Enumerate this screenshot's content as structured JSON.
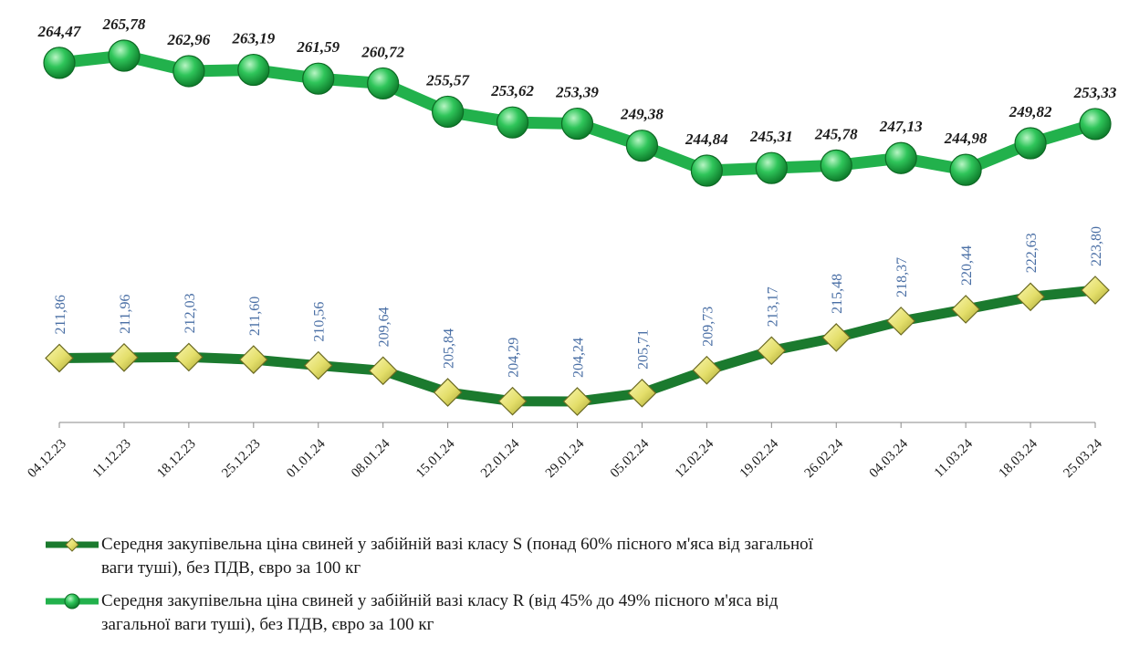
{
  "chart_data": {
    "type": "line",
    "categories": [
      "04.12.23",
      "11.12.23",
      "18.12.23",
      "25.12.23",
      "01.01.24",
      "08.01.24",
      "15.01.24",
      "22.01.24",
      "29.01.24",
      "05.02.24",
      "12.02.24",
      "19.02.24",
      "26.02.24",
      "04.03.24",
      "11.03.24",
      "18.03.24",
      "25.03.24"
    ],
    "series": [
      {
        "name": "Середня закупівельна ціна свиней у забійній вазі класу R (від 45% до 49% пісного м'яса від загальної ваги туші), без ПДВ, євро за 100 кг",
        "values": [
          264.47,
          265.78,
          262.96,
          263.19,
          261.59,
          260.72,
          255.57,
          253.62,
          253.39,
          249.38,
          244.84,
          245.31,
          245.78,
          247.13,
          244.98,
          249.82,
          253.33
        ],
        "labels": [
          "264,47",
          "265,78",
          "262,96",
          "263,19",
          "261,59",
          "260,72",
          "255,57",
          "253,62",
          "253,39",
          "249,38",
          "244,84",
          "245,31",
          "245,78",
          "247,13",
          "244,98",
          "249,82",
          "253,33"
        ],
        "color": "#22b14c",
        "marker": "circle"
      },
      {
        "name": "Середня закупівельна ціна свиней у забійній вазі класу S (понад 60% пісного м'яса від загальної ваги туші), без ПДВ, євро за 100 кг",
        "values": [
          211.86,
          211.96,
          212.03,
          211.6,
          210.56,
          209.64,
          205.84,
          204.29,
          204.24,
          205.71,
          209.73,
          213.17,
          215.48,
          218.37,
          220.44,
          222.63,
          223.8
        ],
        "labels": [
          "211,86",
          "211,96",
          "212,03",
          "211,60",
          "210,56",
          "209,64",
          "205,84",
          "204,29",
          "204,24",
          "205,71",
          "209,73",
          "213,17",
          "215,48",
          "218,37",
          "220,44",
          "222,63",
          "223,80"
        ],
        "color": "#1b7a2e",
        "marker": "diamond"
      }
    ],
    "grid": false,
    "legend_position": "bottom",
    "colors": {
      "s_label": "#4a6fa5",
      "r_label": "#1a1a1a",
      "axis": "#8a8a8a"
    }
  },
  "legend": {
    "items": [
      {
        "line1": "Середня закупівельна  ціна свиней у забійній вазі класу S (понад 60% пісного м'яса від загальної",
        "line2": "ваги туші),  без ПДВ, євро за 100 кг"
      },
      {
        "line1": "Середня закупівельна  ціна свиней у забійній вазі класу R (від 45% до 49% пісного м'яса від",
        "line2": "загальної ваги туші),  без ПДВ, євро за 100 кг"
      }
    ]
  }
}
